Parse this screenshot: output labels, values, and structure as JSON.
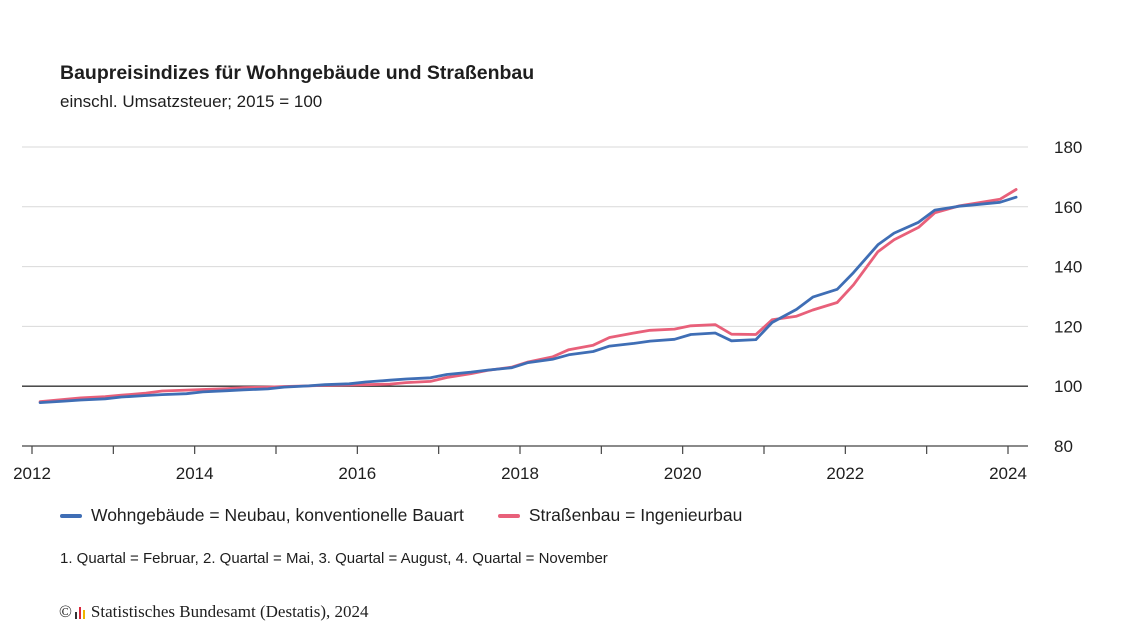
{
  "title": "Baupreisindizes für Wohngebäude und Straßenbau",
  "subtitle": "einschl. Umsatzsteuer; 2015 = 100",
  "note": "1. Quartal = Februar, 2. Quartal = Mai, 3. Quartal = August, 4. Quartal = November",
  "source": {
    "copyright_symbol": "©",
    "text": "Statistisches Bundesamt (Destatis), 2024"
  },
  "colors": {
    "wohngebaeude": "#3f6eb5",
    "strassenbau": "#e8607a",
    "baseline": "#333333",
    "grid": "#d9d9d9"
  },
  "chart_data": {
    "type": "line",
    "x_unit": "year (quarterly: Feb, May, Aug, Nov)",
    "xlim": [
      2012,
      2024.3
    ],
    "ylim": [
      80,
      180
    ],
    "x_ticks": [
      "2012",
      "2014",
      "2016",
      "2018",
      "2020",
      "2022",
      "2024"
    ],
    "y_ticks": [
      "80",
      "100",
      "120",
      "140",
      "160",
      "180"
    ],
    "reference_line": 100,
    "grid": "horizontal",
    "legend_position": "bottom",
    "x": [
      2012.1,
      2012.4,
      2012.6,
      2012.9,
      2013.1,
      2013.4,
      2013.6,
      2013.9,
      2014.1,
      2014.4,
      2014.6,
      2014.9,
      2015.1,
      2015.4,
      2015.6,
      2015.9,
      2016.1,
      2016.4,
      2016.6,
      2016.9,
      2017.1,
      2017.4,
      2017.6,
      2017.9,
      2018.1,
      2018.4,
      2018.6,
      2018.9,
      2019.1,
      2019.4,
      2019.6,
      2019.9,
      2020.1,
      2020.4,
      2020.6,
      2020.9,
      2021.1,
      2021.4,
      2021.6,
      2021.9,
      2022.1,
      2022.4,
      2022.6,
      2022.9,
      2023.1,
      2023.4,
      2023.6,
      2023.9,
      2024.1
    ],
    "series": [
      {
        "name": "Wohngebäude = Neubau, konventionelle Bauart",
        "values": [
          94.5,
          95.0,
          95.4,
          95.8,
          96.4,
          96.9,
          97.2,
          97.5,
          98.1,
          98.5,
          98.8,
          99.1,
          99.7,
          100.1,
          100.5,
          100.8,
          101.4,
          102.0,
          102.4,
          102.8,
          103.9,
          104.7,
          105.4,
          106.2,
          107.9,
          109.0,
          110.5,
          111.6,
          113.4,
          114.3,
          115.1,
          115.7,
          117.3,
          117.8,
          115.2,
          115.6,
          121.3,
          125.7,
          129.8,
          132.4,
          138.0,
          147.3,
          151.2,
          154.8,
          158.9,
          160.2,
          160.7,
          161.5,
          163.2
        ]
      },
      {
        "name": "Straßenbau = Ingenieurbau",
        "values": [
          94.8,
          95.6,
          96.1,
          96.5,
          97.0,
          97.7,
          98.4,
          98.7,
          98.9,
          99.2,
          99.5,
          99.7,
          99.9,
          100.1,
          100.3,
          100.4,
          100.5,
          100.7,
          101.2,
          101.6,
          102.9,
          104.2,
          105.3,
          106.4,
          108.1,
          109.8,
          112.2,
          113.7,
          116.3,
          117.8,
          118.7,
          119.1,
          120.2,
          120.6,
          117.4,
          117.3,
          122.2,
          123.4,
          125.5,
          128.0,
          133.9,
          145.0,
          149.0,
          153.1,
          158.0,
          160.3,
          161.2,
          162.5,
          165.8
        ]
      }
    ]
  }
}
